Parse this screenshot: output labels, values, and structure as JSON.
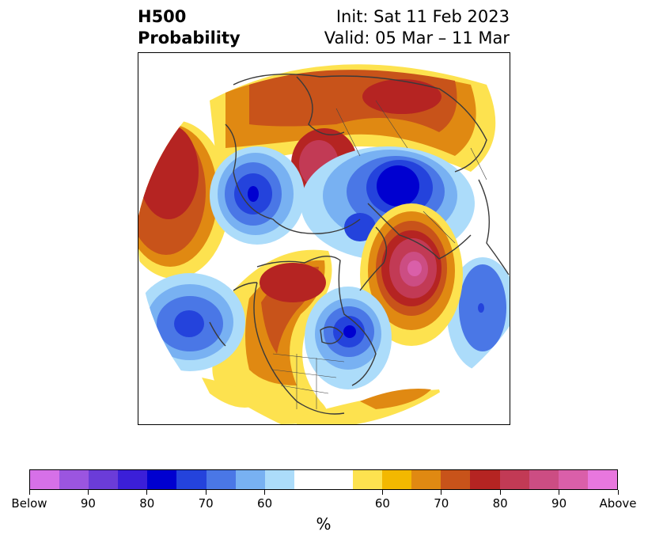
{
  "title": {
    "line1": "H500",
    "line2": "Probability",
    "init": "Init: Sat 11 Feb 2023",
    "valid": "Valid: 05 Mar – 11 Mar"
  },
  "map": {
    "projection": "north polar stereographic",
    "field": "500 hPa height probability",
    "features": [
      {
        "name": "ridge-west-pacific",
        "category": "above",
        "peak_percent": 80
      },
      {
        "name": "ridge-north-asia",
        "category": "above",
        "peak_percent": 90
      },
      {
        "name": "ridge-greenland",
        "category": "above",
        "peak_percent": 90
      },
      {
        "name": "ridge-alaska-western-canada",
        "category": "above",
        "peak_percent": 80
      },
      {
        "name": "trough-central-asia",
        "category": "below",
        "peak_percent": 80
      },
      {
        "name": "trough-arctic-europe",
        "category": "below",
        "peak_percent": 80
      },
      {
        "name": "trough-north-pacific",
        "category": "below",
        "peak_percent": 80
      },
      {
        "name": "trough-eastern-north-america",
        "category": "below",
        "peak_percent": 80
      },
      {
        "name": "trough-west-europe",
        "category": "below",
        "peak_percent": 70
      }
    ]
  },
  "colorbar": {
    "unit": "%",
    "colors": [
      "#d670e8",
      "#9b55e0",
      "#6b3cd8",
      "#3b1fd8",
      "#0000d0",
      "#2443dc",
      "#4a77e6",
      "#78b1f2",
      "#acdcfa",
      "#ffffff",
      "#ffffff",
      "#fde24f",
      "#f3b800",
      "#e08912",
      "#c8531a",
      "#b52422",
      "#c23a55",
      "#cc4d83",
      "#da5fa9",
      "#e877de"
    ],
    "tick_labels": [
      "Below",
      "90",
      "80",
      "70",
      "60",
      "60",
      "70",
      "80",
      "90",
      "Above"
    ]
  }
}
